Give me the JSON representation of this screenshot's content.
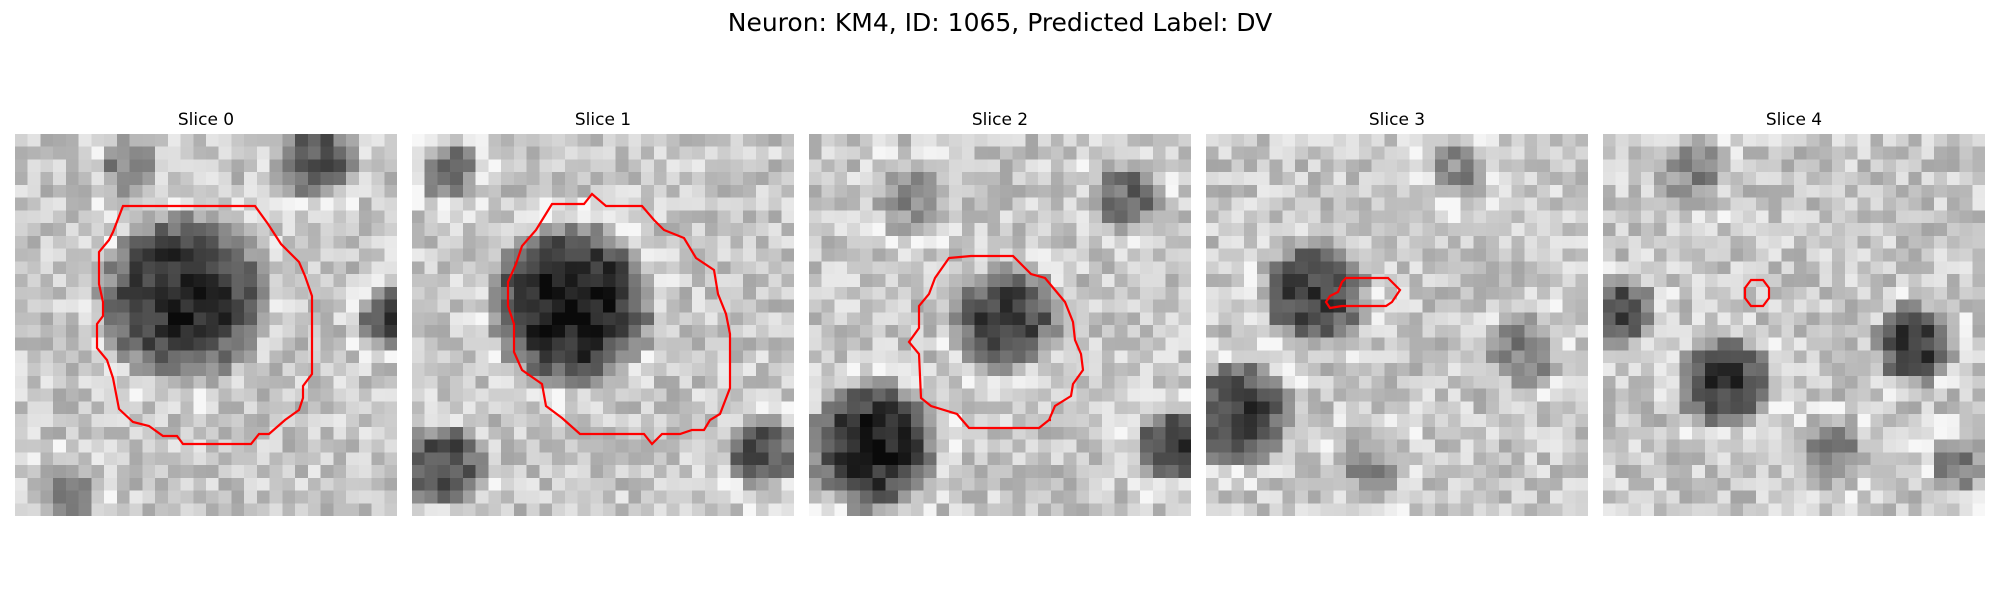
{
  "figure": {
    "title": "Neuron: KM4, ID: 1065, Predicted Label: DV"
  },
  "contour_color": "#ff0000",
  "panels": [
    {
      "title": "Slice 0",
      "image": "grayscale EM crop, large dark cell body with bright surrounding membrane"
    },
    {
      "title": "Slice 1",
      "image": "grayscale EM crop, large dark cell body, outline extends to bottom edge"
    },
    {
      "title": "Slice 2",
      "image": "grayscale EM crop, medium dark region in center, dark blobs at lower left and right"
    },
    {
      "title": "Slice 3",
      "image": "grayscale EM crop, small elongated outline on dark structure at left"
    },
    {
      "title": "Slice 4",
      "image": "grayscale EM crop, tiny circular outline near center, dark blobs below"
    }
  ]
}
